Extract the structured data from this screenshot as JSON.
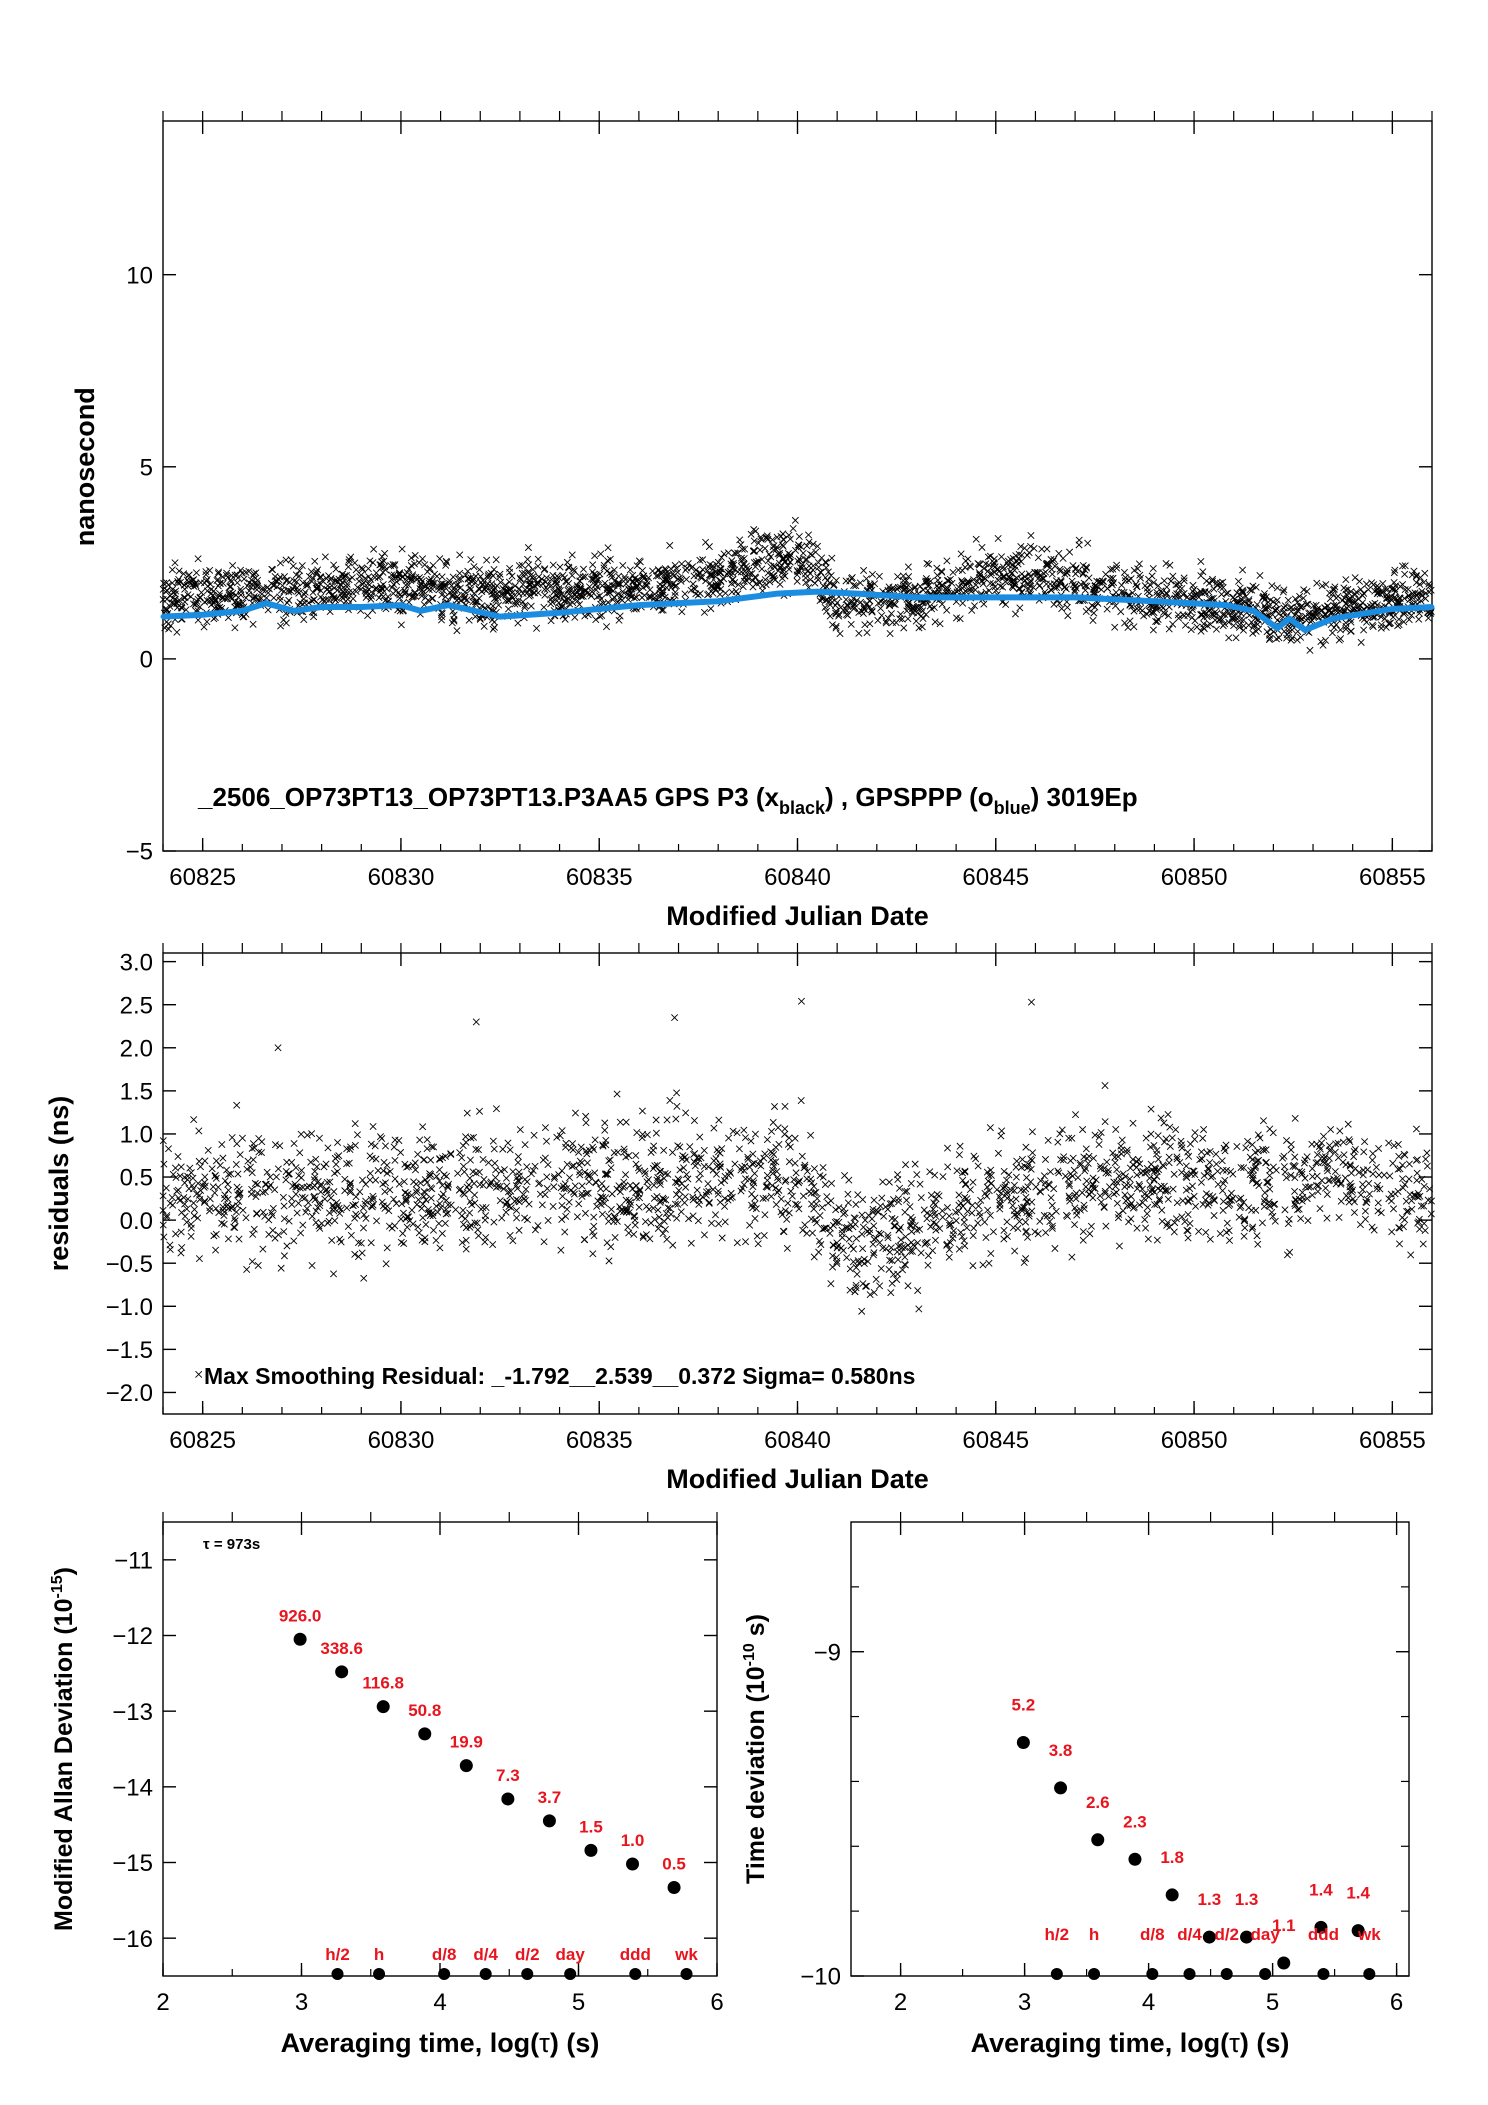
{
  "chart_data": [
    {
      "id": "panel1",
      "type": "scatter",
      "xlabel": "Modified Julian Date",
      "ylabel": "nanosecond",
      "xlim": [
        60824.0,
        60856.0
      ],
      "ylim": [
        -5,
        14
      ],
      "xticks": [
        60825,
        60830,
        60835,
        60840,
        60845,
        60850,
        60855
      ],
      "yticks": [
        -5,
        0,
        5,
        10
      ],
      "ytick_labels": [
        "−5",
        "0",
        "5",
        "10"
      ],
      "annotation": {
        "main": "_2506_OP73PT13_OP73PT13.P3AA5     GPS P3 (x",
        "sub1": "black",
        "mid": ") ,  GPSPPP (o",
        "sub2": "blue",
        "end": ")  3019Ep"
      },
      "series": [
        {
          "marker": "x",
          "color": "#000000",
          "trend": [
            [
              60824.0,
              1.6
            ],
            [
              60826,
              1.7
            ],
            [
              60828,
              1.8
            ],
            [
              60830,
              1.9
            ],
            [
              60832,
              1.7
            ],
            [
              60834,
              1.8
            ],
            [
              60836,
              1.9
            ],
            [
              60838,
              2.1
            ],
            [
              60839.5,
              2.6
            ],
            [
              60840.5,
              2.4
            ],
            [
              60841,
              1.4
            ],
            [
              60843,
              1.6
            ],
            [
              60845,
              2.2
            ],
            [
              60847,
              2.0
            ],
            [
              60849,
              1.6
            ],
            [
              60851,
              1.4
            ],
            [
              60852.5,
              1.1
            ],
            [
              60854,
              1.4
            ],
            [
              60856,
              1.6
            ]
          ],
          "spread": 0.55
        },
        {
          "marker": "o",
          "color": "#1a8de0",
          "points": [
            [
              60824.0,
              1.1
            ],
            [
              60825,
              1.15
            ],
            [
              60826,
              1.25
            ],
            [
              60826.6,
              1.45
            ],
            [
              60827.3,
              1.25
            ],
            [
              60828,
              1.35
            ],
            [
              60829,
              1.35
            ],
            [
              60830,
              1.4
            ],
            [
              60830.5,
              1.25
            ],
            [
              60831.2,
              1.4
            ],
            [
              60832.5,
              1.1
            ],
            [
              60834,
              1.2
            ],
            [
              60836,
              1.4
            ],
            [
              60838,
              1.5
            ],
            [
              60839.5,
              1.7
            ],
            [
              60840.5,
              1.75
            ],
            [
              60841.5,
              1.7
            ],
            [
              60843,
              1.6
            ],
            [
              60845,
              1.6
            ],
            [
              60847,
              1.6
            ],
            [
              60849,
              1.5
            ],
            [
              60850.8,
              1.4
            ],
            [
              60851.5,
              1.25
            ],
            [
              60852.1,
              0.8
            ],
            [
              60852.4,
              1.05
            ],
            [
              60852.8,
              0.75
            ],
            [
              60853.5,
              1.05
            ],
            [
              60855,
              1.3
            ],
            [
              60856,
              1.35
            ]
          ]
        }
      ]
    },
    {
      "id": "panel2",
      "type": "scatter",
      "xlabel": "Modified Julian Date",
      "ylabel": "residuals (ns)",
      "xlim": [
        60824.0,
        60856.0
      ],
      "ylim": [
        -2.25,
        3.1
      ],
      "xticks": [
        60825,
        60830,
        60835,
        60840,
        60845,
        60850,
        60855
      ],
      "yticks": [
        -2.0,
        -1.5,
        -1.0,
        -0.5,
        0.0,
        0.5,
        1.0,
        1.5,
        2.0,
        2.5,
        3.0
      ],
      "ytick_labels": [
        "−2.0",
        "−1.5",
        "−1.0",
        "−0.5",
        "0.0",
        "0.5",
        "1.0",
        "1.5",
        "2.0",
        "2.5",
        "3.0"
      ],
      "annotation": "Max Smoothing Residual: _-1.792__2.539__0.372  Sigma= 0.580ns",
      "series": [
        {
          "marker": "x",
          "color": "#000000",
          "trend": [
            [
              60824.0,
              0.3
            ],
            [
              60827,
              0.3
            ],
            [
              60830,
              0.3
            ],
            [
              60833,
              0.45
            ],
            [
              60836,
              0.4
            ],
            [
              60838,
              0.55
            ],
            [
              60840,
              0.5
            ],
            [
              60841,
              -0.2
            ],
            [
              60843,
              -0.1
            ],
            [
              60845,
              0.3
            ],
            [
              60848,
              0.5
            ],
            [
              60851,
              0.4
            ],
            [
              60854,
              0.5
            ],
            [
              60856,
              0.2
            ]
          ],
          "spread": 0.5,
          "extremes": [
            [
              60824.9,
              -1.79
            ],
            [
              60840.1,
              2.54
            ],
            [
              60845.9,
              2.53
            ],
            [
              60831.9,
              2.3
            ],
            [
              60836.9,
              2.35
            ],
            [
              60826.9,
              2.0
            ]
          ]
        }
      ]
    },
    {
      "id": "panel3",
      "type": "scatter",
      "xlabel_parts": [
        "Averaging time, log(",
        "τ",
        ") (s)"
      ],
      "ylabel": "Modified Allan Deviation (10",
      "ylabel_sup": "-15",
      "ylabel_end": ")",
      "xlim": [
        2,
        6
      ],
      "ylim": [
        -16.5,
        -10.5
      ],
      "xticks": [
        2,
        3,
        4,
        5,
        6
      ],
      "yticks": [
        -16,
        -15,
        -14,
        -13,
        -12,
        -11
      ],
      "ytick_labels": [
        "−16",
        "−15",
        "−14",
        "−13",
        "−12",
        "−11"
      ],
      "tau_note": "τ = 973s",
      "points": [
        {
          "x": 2.99,
          "y": -12.05,
          "label": "926.0"
        },
        {
          "x": 3.29,
          "y": -12.48,
          "label": "338.6"
        },
        {
          "x": 3.59,
          "y": -12.94,
          "label": "116.8"
        },
        {
          "x": 3.89,
          "y": -13.3,
          "label": "50.8"
        },
        {
          "x": 4.19,
          "y": -13.72,
          "label": "19.9"
        },
        {
          "x": 4.49,
          "y": -14.16,
          "label": "7.3"
        },
        {
          "x": 4.79,
          "y": -14.45,
          "label": "3.7"
        },
        {
          "x": 5.09,
          "y": -14.84,
          "label": "1.5"
        },
        {
          "x": 5.39,
          "y": -15.02,
          "label": "1.0"
        },
        {
          "x": 5.69,
          "y": -15.33,
          "label": "0.5"
        }
      ],
      "markers": [
        {
          "x": 3.26,
          "label": "h/2"
        },
        {
          "x": 3.56,
          "label": "h"
        },
        {
          "x": 4.03,
          "label": "d/8"
        },
        {
          "x": 4.33,
          "label": "d/4"
        },
        {
          "x": 4.63,
          "label": "d/2"
        },
        {
          "x": 4.94,
          "label": "day"
        },
        {
          "x": 5.41,
          "label": "ddd"
        },
        {
          "x": 5.78,
          "label": "wk"
        }
      ]
    },
    {
      "id": "panel4",
      "type": "scatter",
      "xlabel_parts": [
        "Averaging time, log(",
        "τ",
        ") (s)"
      ],
      "ylabel": "Time deviation (10",
      "ylabel_sup": "-10",
      "ylabel_end": " s)",
      "xlim": [
        1.6,
        6.1
      ],
      "ylim": [
        -10.0,
        -8.6
      ],
      "xticks": [
        2,
        3,
        4,
        5,
        6
      ],
      "yticks": [
        -10,
        -9
      ],
      "ytick_labels": [
        "−10",
        "−9"
      ],
      "minor_yticks": [
        -9.8,
        -9.6,
        -9.4,
        -9.2,
        -8.8
      ],
      "points": [
        {
          "x": 2.99,
          "y": -9.28,
          "label": "5.2"
        },
        {
          "x": 3.29,
          "y": -9.42,
          "label": "3.8"
        },
        {
          "x": 3.59,
          "y": -9.58,
          "label": "2.6"
        },
        {
          "x": 3.89,
          "y": -9.64,
          "label": "2.3"
        },
        {
          "x": 4.19,
          "y": -9.75,
          "label": "1.8"
        },
        {
          "x": 4.49,
          "y": -9.88,
          "label": "1.3"
        },
        {
          "x": 4.79,
          "y": -9.88,
          "label": "1.3"
        },
        {
          "x": 5.09,
          "y": -9.96,
          "label": "1.1"
        },
        {
          "x": 5.39,
          "y": -9.85,
          "label": "1.4"
        },
        {
          "x": 5.69,
          "y": -9.86,
          "label": "1.4"
        }
      ],
      "markers": [
        {
          "x": 3.26,
          "label": "h/2"
        },
        {
          "x": 3.56,
          "label": "h"
        },
        {
          "x": 4.03,
          "label": "d/8"
        },
        {
          "x": 4.33,
          "label": "d/4"
        },
        {
          "x": 4.63,
          "label": "d/2"
        },
        {
          "x": 4.94,
          "label": "day"
        },
        {
          "x": 5.41,
          "label": "ddd"
        },
        {
          "x": 5.78,
          "label": "wk"
        }
      ]
    }
  ]
}
